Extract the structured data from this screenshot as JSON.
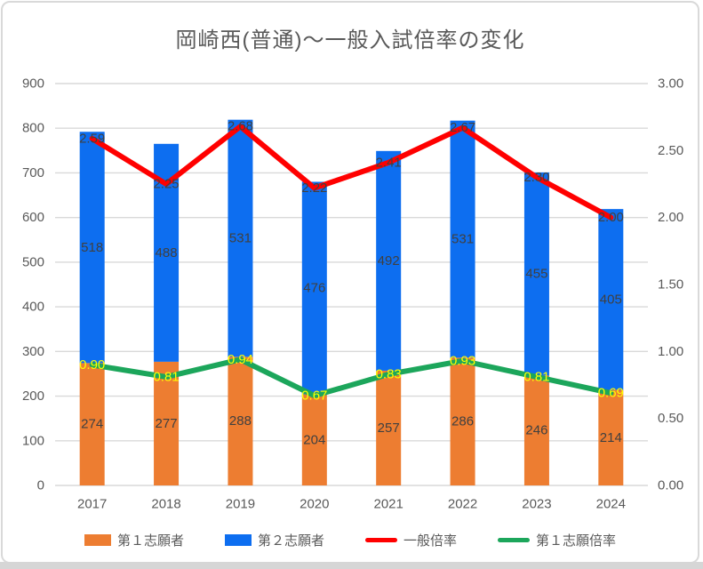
{
  "title": "岡崎西(普通)～一般入試倍率の変化",
  "colors": {
    "bar_primary": "#ED7D31",
    "bar_secondary": "#0D6EF0",
    "line_general": "#FF0000",
    "line_first_choice": "#1CA65B",
    "grid": "#D9D9D9",
    "axis_text": "#595959",
    "data_label": "#404040",
    "data_label_yellow": "#FFFF00",
    "panel_border": "#D9D9D9"
  },
  "chart_data": {
    "type": "bar",
    "subtype": "stacked-bar-with-lines",
    "title": "岡崎西(普通)～一般入試倍率の変化",
    "categories": [
      "2017",
      "2018",
      "2019",
      "2020",
      "2021",
      "2022",
      "2023",
      "2024"
    ],
    "series": [
      {
        "name": "第１志願者",
        "type": "bar",
        "axis": "left",
        "color": "#ED7D31",
        "label_color": "#404040",
        "values": [
          274,
          277,
          288,
          204,
          257,
          286,
          246,
          214
        ]
      },
      {
        "name": "第２志願者",
        "type": "bar",
        "axis": "left",
        "color": "#0D6EF0",
        "label_color": "#404040",
        "values": [
          518,
          488,
          531,
          476,
          492,
          531,
          455,
          405
        ]
      },
      {
        "name": "一般倍率",
        "type": "line",
        "axis": "right",
        "color": "#FF0000",
        "label_color": "#404040",
        "values": [
          2.59,
          2.25,
          2.68,
          2.22,
          2.41,
          2.67,
          2.3,
          2.0
        ]
      },
      {
        "name": "第１志願倍率",
        "type": "line",
        "axis": "right",
        "color": "#1CA65B",
        "label_color": "#FFFF00",
        "values": [
          0.9,
          0.81,
          0.94,
          0.67,
          0.83,
          0.93,
          0.81,
          0.69
        ]
      }
    ],
    "left_axis": {
      "min": 0,
      "max": 900,
      "step": 100
    },
    "right_axis": {
      "min": 0.0,
      "max": 3.0,
      "step": 0.5,
      "decimals": 2
    },
    "grid": true,
    "legend_position": "bottom"
  }
}
